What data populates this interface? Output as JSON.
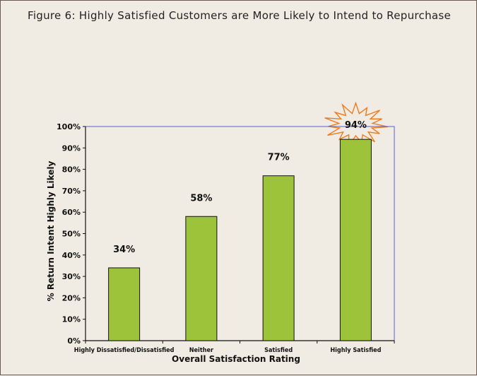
{
  "chart_data": {
    "type": "bar",
    "title": "Figure 6: Highly Satisfied Customers are More Likely to Intend to Repurchase",
    "categories": [
      "Highly Dissatisfied/Dissatisfied",
      "Neither",
      "Satisfied",
      "Highly Satisfied"
    ],
    "values": [
      34,
      58,
      77,
      94
    ],
    "value_labels": [
      "34%",
      "58%",
      "77%",
      "94%"
    ],
    "xlabel": "Overall Satisfaction Rating",
    "ylabel": "% Return Intent Highly Likely",
    "ylim": [
      0,
      100
    ],
    "yticks": [
      "0%",
      "10%",
      "20%",
      "30%",
      "40%",
      "50%",
      "60%",
      "70%",
      "80%",
      "90%",
      "100%"
    ],
    "highlight_category": "Highly Satisfied",
    "colors": {
      "bar": "#9dc33b",
      "bar_stroke": "#111111",
      "plot_border": "#5b5bd6",
      "burst_stroke": "#f07a1a",
      "background": "#f0ece3"
    }
  }
}
